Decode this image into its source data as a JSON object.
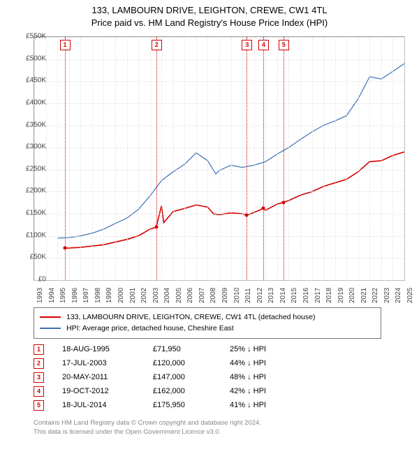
{
  "title_line1": "133, LAMBOURN DRIVE, LEIGHTON, CREWE, CW1 4TL",
  "title_line2": "Price paid vs. HM Land Registry's House Price Index (HPI)",
  "colors": {
    "property": "#d40000",
    "hpi": "#3b6fb6",
    "grid": "#e2e2e2",
    "text": "#444444",
    "footer": "#888888",
    "border": "#999999"
  },
  "font_sizes": {
    "title": 13,
    "axis": 10,
    "legend": 10.5,
    "table": 11,
    "footer": 9.5
  },
  "y_axis": {
    "min": 0,
    "max": 550000,
    "ticks": [
      0,
      50000,
      100000,
      150000,
      200000,
      250000,
      300000,
      350000,
      400000,
      450000,
      500000,
      550000
    ],
    "labels": [
      "£0",
      "£50K",
      "£100K",
      "£150K",
      "£200K",
      "£250K",
      "£300K",
      "£350K",
      "£400K",
      "£450K",
      "£500K",
      "£550K"
    ]
  },
  "x_axis": {
    "min": 1993,
    "max": 2025,
    "ticks": [
      1993,
      1994,
      1995,
      1996,
      1997,
      1998,
      1999,
      2000,
      2001,
      2002,
      2003,
      2004,
      2005,
      2006,
      2007,
      2008,
      2009,
      2010,
      2011,
      2012,
      2013,
      2014,
      2015,
      2016,
      2017,
      2018,
      2019,
      2020,
      2021,
      2022,
      2023,
      2024,
      2025
    ]
  },
  "series": {
    "property": [
      [
        1995.6,
        72000
      ],
      [
        1997,
        74000
      ],
      [
        1999,
        80000
      ],
      [
        2001,
        92000
      ],
      [
        2002,
        100000
      ],
      [
        2003,
        115000
      ],
      [
        2003.55,
        120000
      ],
      [
        2004,
        168000
      ],
      [
        2004.2,
        130000
      ],
      [
        2005,
        155000
      ],
      [
        2006,
        162000
      ],
      [
        2007,
        170000
      ],
      [
        2008,
        165000
      ],
      [
        2008.5,
        150000
      ],
      [
        2009,
        148000
      ],
      [
        2010,
        152000
      ],
      [
        2011,
        150000
      ],
      [
        2011.4,
        147000
      ],
      [
        2012,
        153000
      ],
      [
        2012.8,
        162000
      ],
      [
        2013,
        158000
      ],
      [
        2014,
        172000
      ],
      [
        2014.55,
        175950
      ],
      [
        2015,
        180000
      ],
      [
        2016,
        192000
      ],
      [
        2017,
        200000
      ],
      [
        2018,
        212000
      ],
      [
        2019,
        220000
      ],
      [
        2020,
        228000
      ],
      [
        2021,
        245000
      ],
      [
        2022,
        268000
      ],
      [
        2023,
        270000
      ],
      [
        2024,
        282000
      ],
      [
        2025,
        290000
      ]
    ],
    "hpi": [
      [
        1995,
        95000
      ],
      [
        1996,
        96000
      ],
      [
        1997,
        100000
      ],
      [
        1998,
        106000
      ],
      [
        1999,
        115000
      ],
      [
        2000,
        128000
      ],
      [
        2001,
        140000
      ],
      [
        2002,
        160000
      ],
      [
        2003,
        190000
      ],
      [
        2004,
        225000
      ],
      [
        2005,
        245000
      ],
      [
        2006,
        262000
      ],
      [
        2007,
        288000
      ],
      [
        2008,
        270000
      ],
      [
        2008.7,
        240000
      ],
      [
        2009,
        248000
      ],
      [
        2010,
        260000
      ],
      [
        2011,
        255000
      ],
      [
        2012,
        260000
      ],
      [
        2013,
        268000
      ],
      [
        2014,
        285000
      ],
      [
        2015,
        300000
      ],
      [
        2016,
        318000
      ],
      [
        2017,
        335000
      ],
      [
        2018,
        350000
      ],
      [
        2019,
        360000
      ],
      [
        2020,
        372000
      ],
      [
        2021,
        410000
      ],
      [
        2022,
        460000
      ],
      [
        2023,
        455000
      ],
      [
        2024,
        472000
      ],
      [
        2025,
        490000
      ]
    ]
  },
  "sales": [
    {
      "n": "1",
      "year": 1995.63,
      "date": "18-AUG-1995",
      "price": "£71,950",
      "diff": "25% ↓ HPI",
      "price_val": 71950
    },
    {
      "n": "2",
      "year": 2003.55,
      "date": "17-JUL-2003",
      "price": "£120,000",
      "diff": "44% ↓ HPI",
      "price_val": 120000
    },
    {
      "n": "3",
      "year": 2011.38,
      "date": "20-MAY-2011",
      "price": "£147,000",
      "diff": "48% ↓ HPI",
      "price_val": 147000
    },
    {
      "n": "4",
      "year": 2012.8,
      "date": "19-OCT-2012",
      "price": "£162,000",
      "diff": "42% ↓ HPI",
      "price_val": 162000
    },
    {
      "n": "5",
      "year": 2014.55,
      "date": "18-JUL-2014",
      "price": "£175,950",
      "diff": "41% ↓ HPI",
      "price_val": 175950
    }
  ],
  "legend": {
    "property": "133, LAMBOURN DRIVE, LEIGHTON, CREWE, CW1 4TL (detached house)",
    "hpi": "HPI: Average price, detached house, Cheshire East"
  },
  "footer_line1": "Contains HM Land Registry data © Crown copyright and database right 2024.",
  "footer_line2": "This data is licensed under the Open Government Licence v3.0."
}
